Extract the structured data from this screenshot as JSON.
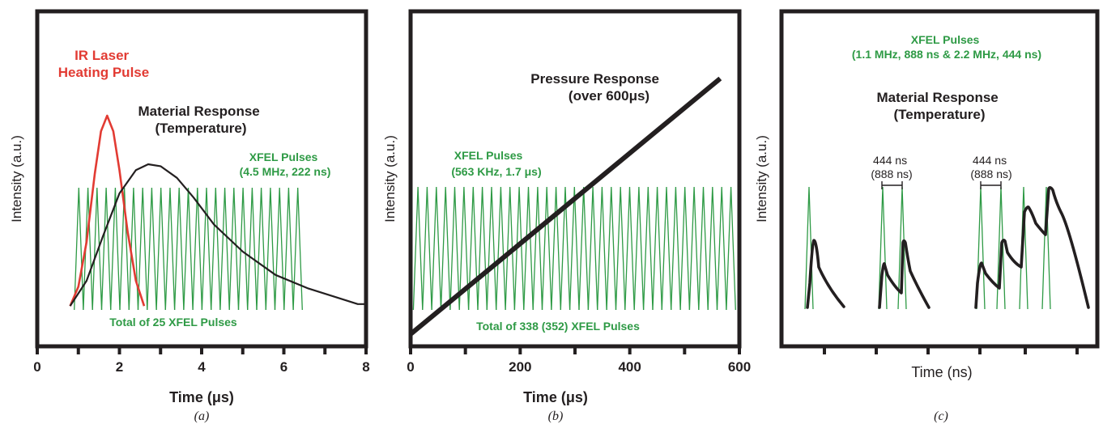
{
  "chart_data": [
    {
      "type": "line",
      "panel_label": "(a)",
      "xlabel": "Time (μs)",
      "ylabel": "Intensity (a.u.)",
      "xlim": [
        0,
        8
      ],
      "x_ticks": [
        0,
        2,
        4,
        6,
        8
      ],
      "x_tick_labels": [
        "0",
        "2",
        "4",
        "6",
        "8"
      ],
      "annotations": [
        {
          "lines": [
            "IR Laser",
            "Heating Pulse"
          ],
          "color": "#e23b33"
        },
        {
          "lines": [
            "Material Response",
            "(Temperature)"
          ],
          "color": "#231f20"
        },
        {
          "lines": [
            "XFEL Pulses",
            "(4.5 MHz, 222 ns)"
          ],
          "color": "#2e9a45"
        },
        {
          "lines": [
            "Total of 25 XFEL Pulses"
          ],
          "color": "#2e9a45"
        }
      ],
      "pulses": {
        "start": 0.9,
        "period": 0.222,
        "count": 25
      },
      "series": [
        {
          "name": "IR Laser Heating Pulse",
          "color": "#e23b33",
          "x": [
            0.8,
            1.0,
            1.2,
            1.4,
            1.55,
            1.7,
            1.85,
            2.0,
            2.2,
            2.4,
            2.6
          ],
          "y": [
            0.02,
            0.12,
            0.35,
            0.7,
            0.92,
            1.0,
            0.92,
            0.72,
            0.4,
            0.15,
            0.02
          ]
        },
        {
          "name": "Material Response (Temperature)",
          "color": "#231f20",
          "x": [
            0.8,
            1.2,
            1.6,
            2.0,
            2.4,
            2.7,
            3.0,
            3.4,
            3.8,
            4.3,
            5.0,
            5.8,
            6.6,
            7.2,
            7.8,
            8.0
          ],
          "y": [
            0.02,
            0.15,
            0.38,
            0.6,
            0.72,
            0.75,
            0.74,
            0.68,
            0.58,
            0.44,
            0.3,
            0.18,
            0.11,
            0.07,
            0.03,
            0.03
          ]
        }
      ]
    },
    {
      "type": "line",
      "panel_label": "(b)",
      "xlabel": "Time (μs)",
      "ylabel": "Intensity (a.u.)",
      "xlim": [
        0,
        600
      ],
      "x_ticks": [
        0,
        200,
        400,
        600
      ],
      "x_tick_labels": [
        "0",
        "200",
        "400",
        "600"
      ],
      "annotations": [
        {
          "lines": [
            "Pressure Response",
            "(over 600μs)"
          ],
          "color": "#231f20"
        },
        {
          "lines": [
            "XFEL Pulses",
            "(563 KHz, 1.7 μs)"
          ],
          "color": "#2e9a45"
        },
        {
          "lines": [
            "Total of 338 (352) XFEL Pulses"
          ],
          "color": "#2e9a45"
        }
      ],
      "pulses": {
        "start": 5,
        "period": 16.8,
        "count": 35
      },
      "series": [
        {
          "name": "Pressure Response",
          "color": "#231f20",
          "x": [
            0,
            565
          ],
          "y": [
            0,
            1.0
          ]
        }
      ]
    },
    {
      "type": "line",
      "panel_label": "(c)",
      "xlabel": "Time (ns)",
      "ylabel": "Intensity (a.u.)",
      "annotations": [
        {
          "lines": [
            "XFEL Pulses",
            "(1.1 MHz, 888 ns & 2.2 MHz, 444 ns)"
          ],
          "color": "#2e9a45"
        },
        {
          "lines": [
            "Material Response",
            "(Temperature)"
          ],
          "color": "#231f20"
        },
        {
          "lines": [
            "444 ns",
            "(888 ns)"
          ],
          "color": "#231f20"
        },
        {
          "lines": [
            "444 ns",
            "(888 ns)"
          ],
          "color": "#231f20"
        }
      ]
    }
  ],
  "colors": {
    "axis": "#231f20",
    "green": "#2e9a45",
    "red": "#e23b33",
    "black": "#231f20"
  }
}
